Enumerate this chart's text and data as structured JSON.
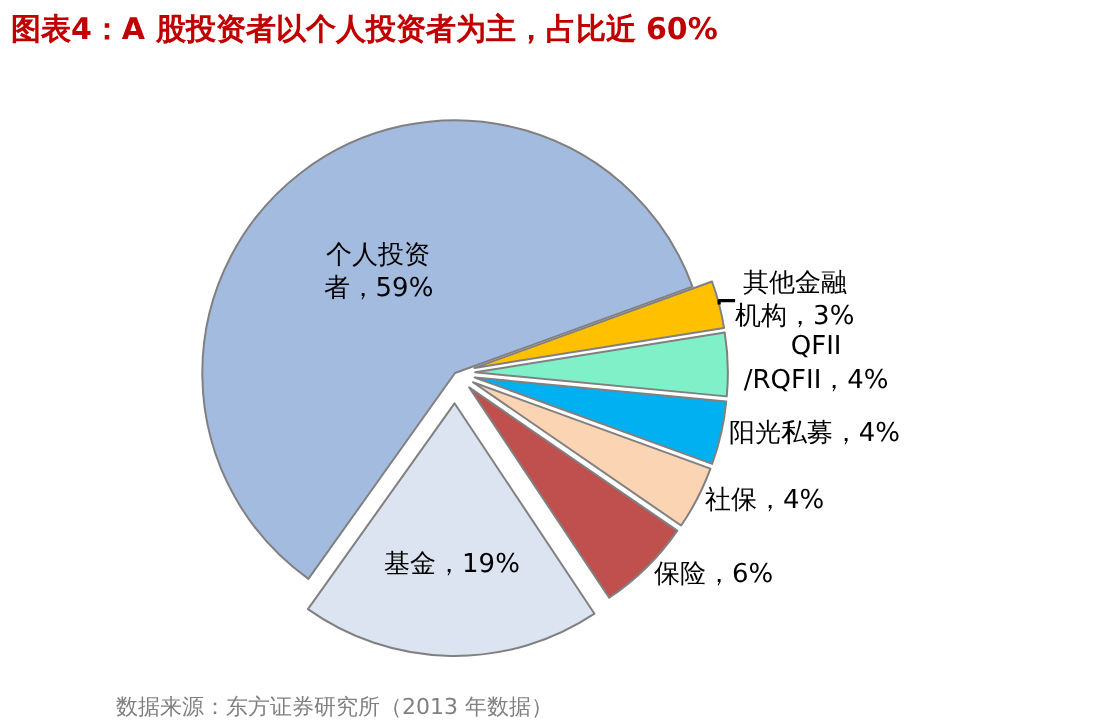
{
  "chart_data": {
    "type": "pie",
    "title": "图表4：A 股投资者以个人投资者为主，占比近 60%",
    "categories": [
      "其他金融机构",
      "QFII/RQFII",
      "阳光私募",
      "社保",
      "保险",
      "基金",
      "个人投资者"
    ],
    "values": [
      3,
      4,
      4,
      4,
      6,
      19,
      59
    ],
    "value_labels": [
      "3%",
      "4%",
      "4%",
      "4%",
      "6%",
      "19%",
      "59%"
    ],
    "colors": [
      "#ffc000",
      "#7ff0c8",
      "#00b0f0",
      "#fbd4b4",
      "#c0504d",
      "#dce4f2",
      "#a4bbe0"
    ],
    "legend": false,
    "annotations": [
      "数据来源：东方证券研究所（2013 年数据）"
    ]
  }
}
